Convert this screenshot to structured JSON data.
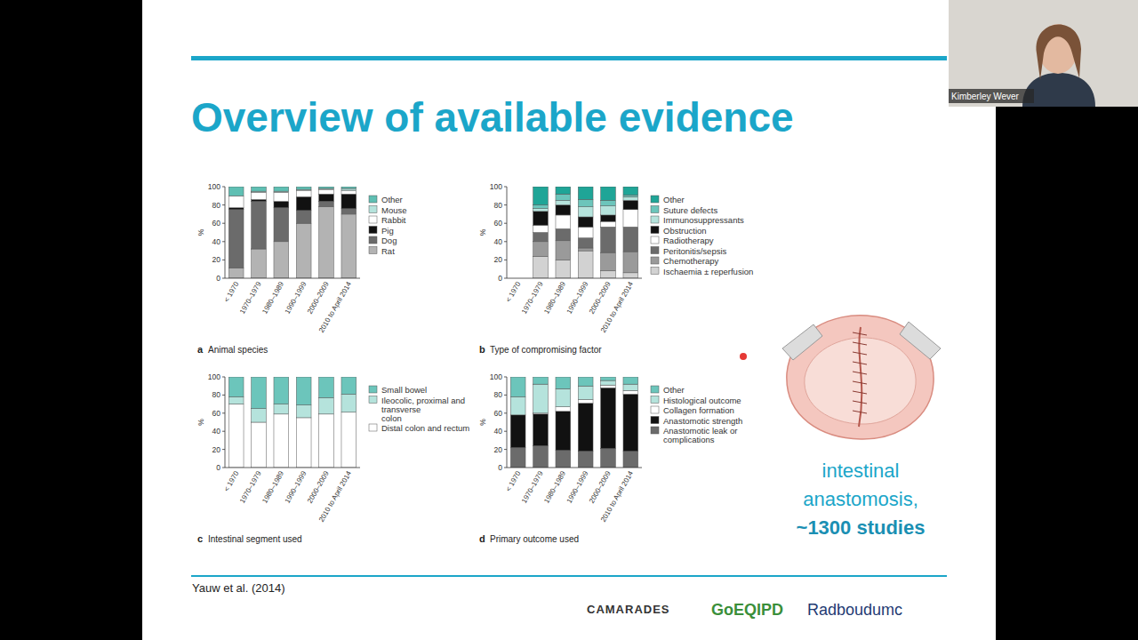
{
  "slide": {
    "title": "Overview of available evidence",
    "citation": "Yauw et al. (2014)",
    "callout": [
      "intestinal",
      "anastomosis,",
      "~1300 studies"
    ],
    "logos": [
      "CAMARADES",
      "GoEQIPD",
      "Radboudumc"
    ],
    "speaker": "Kimberley Wever"
  },
  "chart_data": [
    {
      "type": "bar",
      "stacked": true,
      "label": "a",
      "title": "Animal species",
      "y_label": "%",
      "ylim": [
        0,
        100
      ],
      "yticks": [
        0,
        20,
        40,
        60,
        80,
        100
      ],
      "legend": "right",
      "categories": [
        "< 1970",
        "1970–1979",
        "1980–1989",
        "1990–1999",
        "2000–2009",
        "2010 to April 2014"
      ],
      "series": [
        {
          "name": "Rat",
          "color": "#b3b3b3",
          "values": [
            11,
            32,
            40,
            60,
            78,
            70
          ]
        },
        {
          "name": "Dog",
          "color": "#6b6b6b",
          "values": [
            64,
            52,
            37,
            14,
            6,
            6
          ]
        },
        {
          "name": "Pig",
          "color": "#111111",
          "values": [
            2,
            2,
            7,
            15,
            8,
            16
          ]
        },
        {
          "name": "Rabbit",
          "color": "#ffffff",
          "values": [
            13,
            8,
            10,
            7,
            5,
            4
          ]
        },
        {
          "name": "Mouse",
          "color": "#b5e3dc",
          "values": [
            0,
            1,
            1,
            1,
            1,
            2
          ]
        },
        {
          "name": "Other",
          "color": "#5fbfb3",
          "values": [
            10,
            5,
            5,
            3,
            2,
            2
          ]
        }
      ]
    },
    {
      "type": "bar",
      "stacked": true,
      "label": "b",
      "title": "Type of compromising factor",
      "y_label": "%",
      "ylim": [
        0,
        100
      ],
      "yticks": [
        0,
        20,
        40,
        60,
        80,
        100
      ],
      "legend": "right",
      "categories": [
        "< 1970",
        "1970–1979",
        "1980–1989",
        "1990–1999",
        "2000–2009",
        "2010 to April 2014"
      ],
      "series": [
        {
          "name": "Ischaemia ± reperfusion",
          "color": "#d2d2d2",
          "values": [
            0,
            24,
            20,
            30,
            8,
            6
          ]
        },
        {
          "name": "Chemotherapy",
          "color": "#9a9a9a",
          "values": [
            0,
            16,
            21,
            3,
            20,
            23
          ]
        },
        {
          "name": "Peritonitis/sepsis",
          "color": "#6b6b6b",
          "values": [
            0,
            10,
            13,
            11,
            28,
            27
          ]
        },
        {
          "name": "Radiotherapy",
          "color": "#ffffff",
          "values": [
            0,
            8,
            15,
            12,
            6,
            19
          ]
        },
        {
          "name": "Obstruction",
          "color": "#111111",
          "values": [
            0,
            15,
            11,
            11,
            7,
            10
          ]
        },
        {
          "name": "Immunosuppressants",
          "color": "#b5e3dc",
          "values": [
            0,
            3,
            5,
            11,
            10,
            4
          ]
        },
        {
          "name": "Suture defects",
          "color": "#6cc5bb",
          "values": [
            0,
            4,
            7,
            8,
            6,
            2
          ]
        },
        {
          "name": "Other",
          "color": "#1fa597",
          "values": [
            0,
            20,
            8,
            14,
            15,
            9
          ]
        }
      ]
    },
    {
      "type": "bar",
      "stacked": true,
      "label": "c",
      "title": "Intestinal segment used",
      "y_label": "%",
      "ylim": [
        0,
        100
      ],
      "yticks": [
        0,
        20,
        40,
        60,
        80,
        100
      ],
      "legend": "right",
      "categories": [
        "< 1970",
        "1970–1979",
        "1980–1989",
        "1990–1999",
        "2000–2009",
        "2010 to April 2014"
      ],
      "series": [
        {
          "name": "Distal colon and rectum",
          "color": "#ffffff",
          "values": [
            70,
            50,
            59,
            55,
            59,
            61
          ]
        },
        {
          "name": "Ileocolic, proximal and transverse colon",
          "color": "#b5e3dc",
          "values": [
            8,
            15,
            11,
            14,
            18,
            20
          ]
        },
        {
          "name": "Small bowel",
          "color": "#6cc5bb",
          "values": [
            22,
            35,
            30,
            31,
            23,
            19
          ]
        }
      ]
    },
    {
      "type": "bar",
      "stacked": true,
      "label": "d",
      "title": "Primary outcome used",
      "y_label": "%",
      "ylim": [
        0,
        100
      ],
      "yticks": [
        0,
        20,
        40,
        60,
        80,
        100
      ],
      "legend": "right",
      "categories": [
        "< 1970",
        "1970–1979",
        "1980–1989",
        "1990–1999",
        "2000–2009",
        "2010 to April 2014"
      ],
      "series": [
        {
          "name": "Anastomotic leak or complications",
          "color": "#6b6b6b",
          "values": [
            22,
            24,
            19,
            18,
            21,
            18
          ]
        },
        {
          "name": "Anastomotic strength",
          "color": "#111111",
          "values": [
            36,
            35,
            43,
            53,
            67,
            63
          ]
        },
        {
          "name": "Collagen formation",
          "color": "#ffffff",
          "values": [
            0,
            1,
            5,
            4,
            3,
            4
          ]
        },
        {
          "name": "Histological outcome",
          "color": "#b5e3dc",
          "values": [
            20,
            32,
            20,
            15,
            5,
            7
          ]
        },
        {
          "name": "Other",
          "color": "#6cc5bb",
          "values": [
            22,
            8,
            13,
            10,
            4,
            8
          ]
        }
      ]
    }
  ]
}
